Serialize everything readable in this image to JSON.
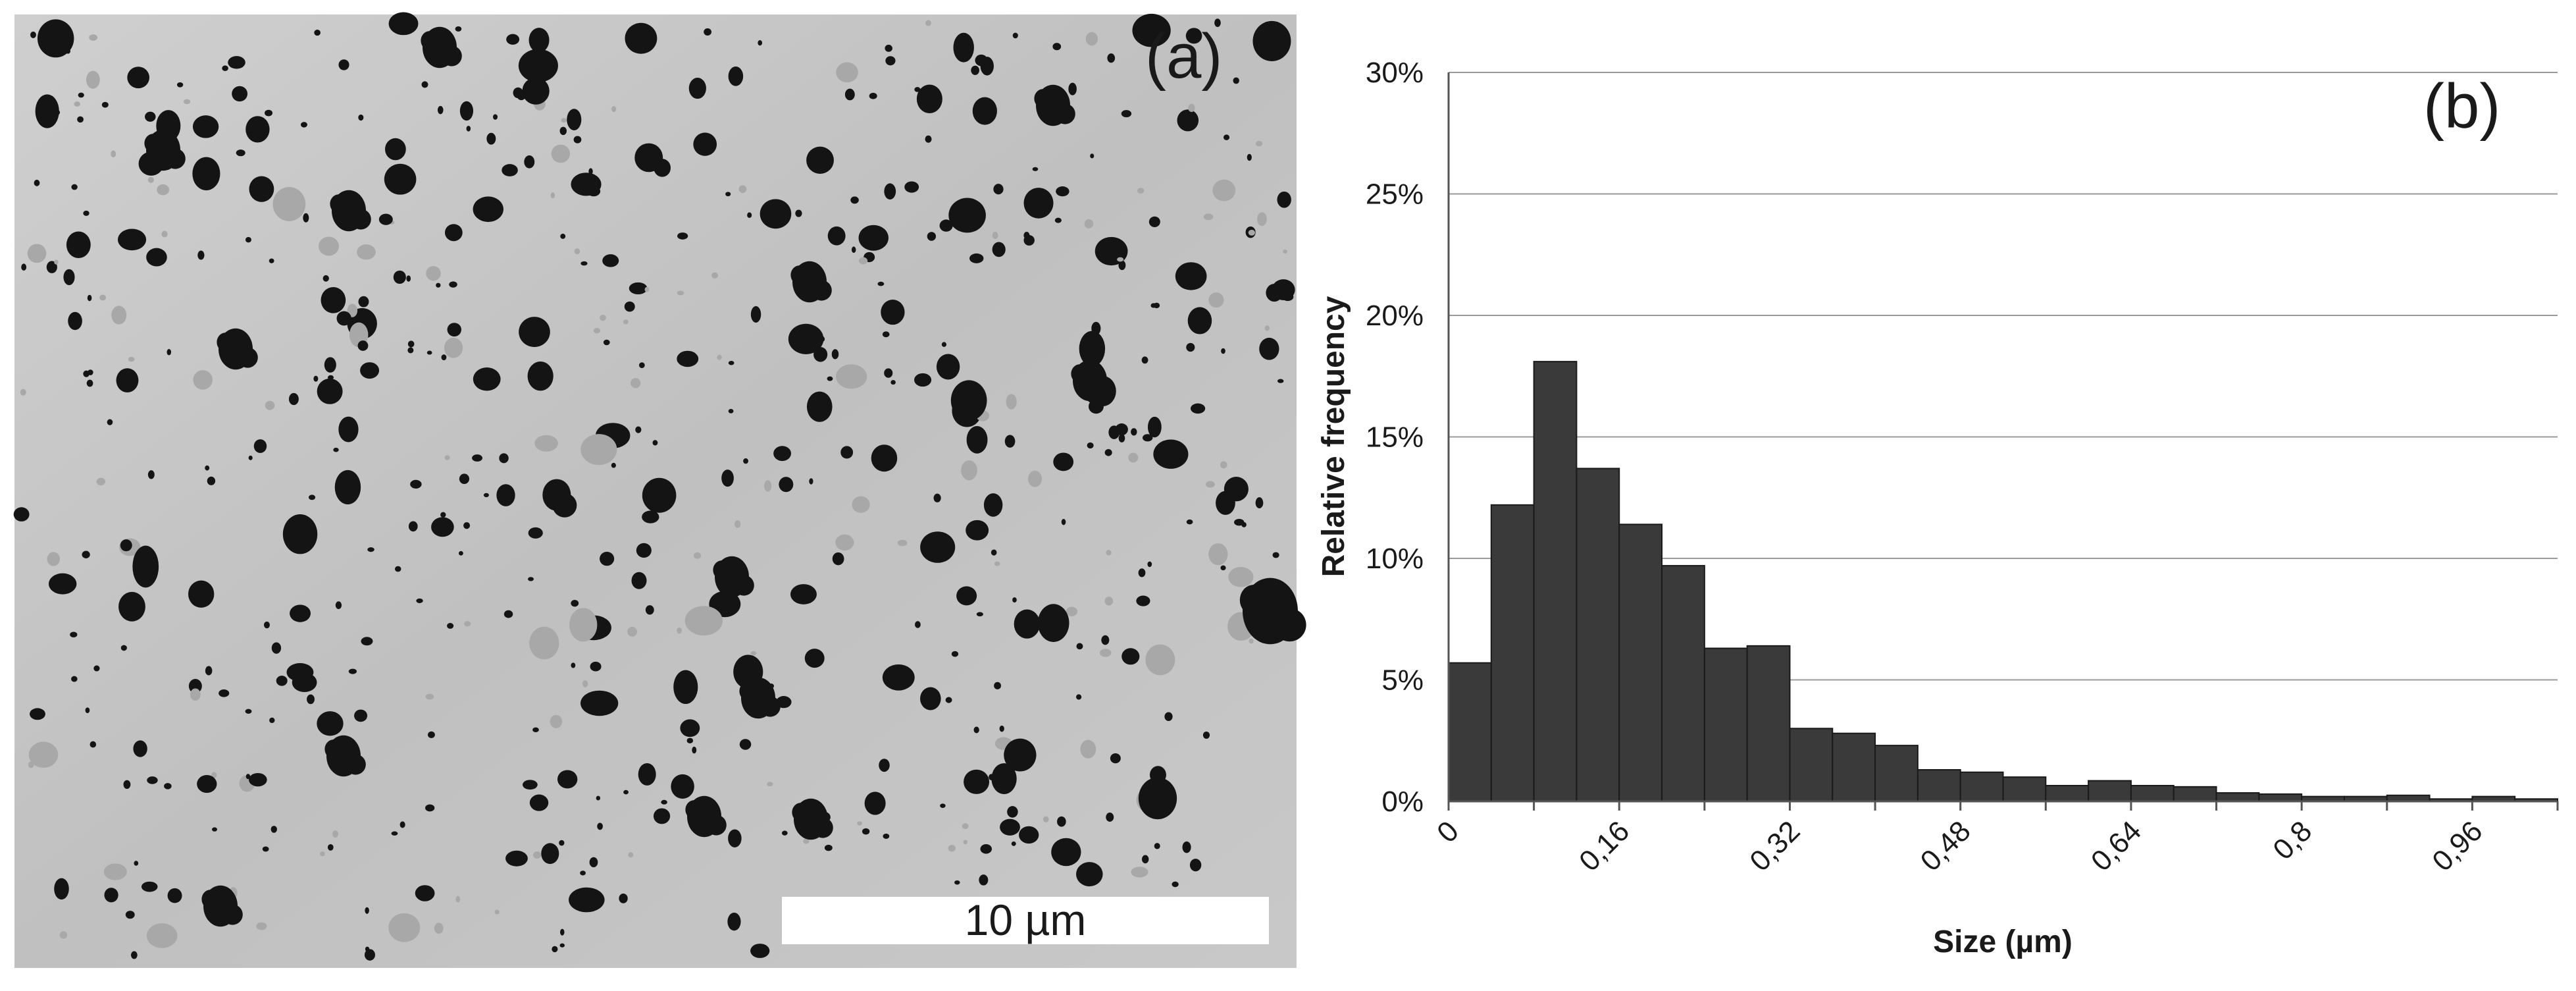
{
  "panel_a": {
    "label": "(a)",
    "scale_bar_text": "10 µm",
    "background_color": "#c4c4c4",
    "particle_color": "#141414"
  },
  "panel_b": {
    "label": "(b)"
  },
  "chart_data": {
    "type": "bar",
    "title": "",
    "xlabel": "Size (µm)",
    "ylabel": "Relative frequency",
    "x_tick_labels": [
      "0",
      "0,16",
      "0,32",
      "0,48",
      "0,64",
      "0,8",
      "0,96"
    ],
    "y_tick_labels": [
      "0%",
      "5%",
      "10%",
      "15%",
      "20%",
      "25%",
      "30%"
    ],
    "xlim": [
      0,
      1.04
    ],
    "ylim": [
      0,
      30
    ],
    "bin_width": 0.04,
    "grid": "horizontal",
    "bar_color": "#3a3a3a",
    "bins": [
      0,
      0.04,
      0.08,
      0.12,
      0.16,
      0.2,
      0.24,
      0.28,
      0.32,
      0.36,
      0.4,
      0.44,
      0.48,
      0.52,
      0.56,
      0.6,
      0.64,
      0.68,
      0.72,
      0.76,
      0.8,
      0.84,
      0.88,
      0.92,
      0.96,
      1.0
    ],
    "values": [
      5.7,
      12.2,
      18.1,
      13.7,
      11.4,
      9.7,
      6.3,
      6.4,
      3.0,
      2.8,
      2.3,
      1.3,
      1.2,
      1.0,
      0.65,
      0.85,
      0.65,
      0.6,
      0.35,
      0.3,
      0.2,
      0.2,
      0.25,
      0.1,
      0.2,
      0.1
    ]
  }
}
